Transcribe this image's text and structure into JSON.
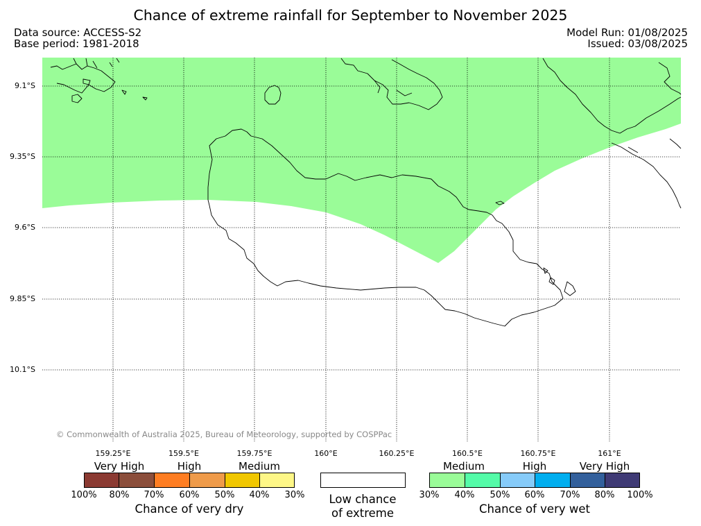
{
  "title": "Chance of extreme rainfall for September to November 2025",
  "data_source": "Data source: ACCESS-S2",
  "base_period": "Base period: 1981-2018",
  "model_run": "Model Run: 01/08/2025",
  "issued": "Issued: 03/08/2025",
  "copyright": "© Commonwealth of Australia 2025, Bureau of Meteorology, supported by COSPPac",
  "lat_labels": [
    "9.1°S",
    "9.35°S",
    "9.6°S",
    "9.85°S",
    "10.1°S"
  ],
  "lon_labels": [
    "159.25°E",
    "159.5°E",
    "159.75°E",
    "160°E",
    "160.25°E",
    "160.5°E",
    "160.75°E",
    "161°E"
  ],
  "map_colors": {
    "wet_medium": "#9afc98",
    "coastline": "#000000",
    "grid": "#000000"
  },
  "legend": {
    "dry": {
      "levels": [
        "Very High",
        "High",
        "Medium"
      ],
      "colors": [
        "#8b3a32",
        "#8b4e3b",
        "#fe7d22",
        "#ef9b4a",
        "#f1c700",
        "#fef787"
      ],
      "ticks": [
        "100%",
        "80%",
        "70%",
        "60%",
        "50%",
        "40%",
        "30%"
      ],
      "caption": "Chance of very dry"
    },
    "neutral": {
      "color": "#ffffff",
      "caption_line1": "Low chance",
      "caption_line2": "of extreme"
    },
    "wet": {
      "levels": [
        "Medium",
        "High",
        "Very High"
      ],
      "colors": [
        "#9afc98",
        "#54fba8",
        "#86cbf9",
        "#00aeef",
        "#33609c",
        "#3f3a75"
      ],
      "ticks": [
        "30%",
        "40%",
        "50%",
        "60%",
        "70%",
        "80%",
        "100%"
      ],
      "caption": "Chance of very wet"
    }
  }
}
